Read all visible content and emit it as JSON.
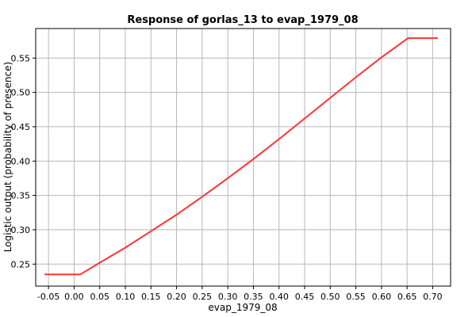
{
  "chart_data": {
    "type": "line",
    "title": "Response of gorlas_13 to evap_1979_08",
    "xlabel": "evap_1979_08",
    "ylabel": "Logistic output (probability of presence)",
    "xlim": [
      -0.075,
      0.735
    ],
    "ylim": [
      0.218,
      0.593
    ],
    "grid": true,
    "x_ticks": [
      -0.05,
      0.0,
      0.05,
      0.1,
      0.15,
      0.2,
      0.25,
      0.3,
      0.35,
      0.4,
      0.45,
      0.5,
      0.55,
      0.6,
      0.65,
      0.7
    ],
    "x_tick_labels": [
      "-0.05",
      "0.00",
      "0.05",
      "0.10",
      "0.15",
      "0.20",
      "0.25",
      "0.30",
      "0.35",
      "0.40",
      "0.45",
      "0.50",
      "0.55",
      "0.60",
      "0.65",
      "0.70"
    ],
    "y_ticks": [
      0.25,
      0.3,
      0.35,
      0.4,
      0.45,
      0.5,
      0.55
    ],
    "y_tick_labels": [
      "0.25",
      "0.30",
      "0.35",
      "0.40",
      "0.45",
      "0.50",
      "0.55"
    ],
    "series": [
      {
        "name": "response",
        "color": "#ff3333",
        "x": [
          -0.058,
          0.012,
          0.05,
          0.1,
          0.15,
          0.2,
          0.25,
          0.3,
          0.35,
          0.4,
          0.45,
          0.5,
          0.55,
          0.6,
          0.652,
          0.71
        ],
        "y": [
          0.235,
          0.235,
          0.252,
          0.274,
          0.298,
          0.322,
          0.348,
          0.375,
          0.403,
          0.432,
          0.462,
          0.492,
          0.522,
          0.551,
          0.579,
          0.579
        ]
      }
    ]
  }
}
